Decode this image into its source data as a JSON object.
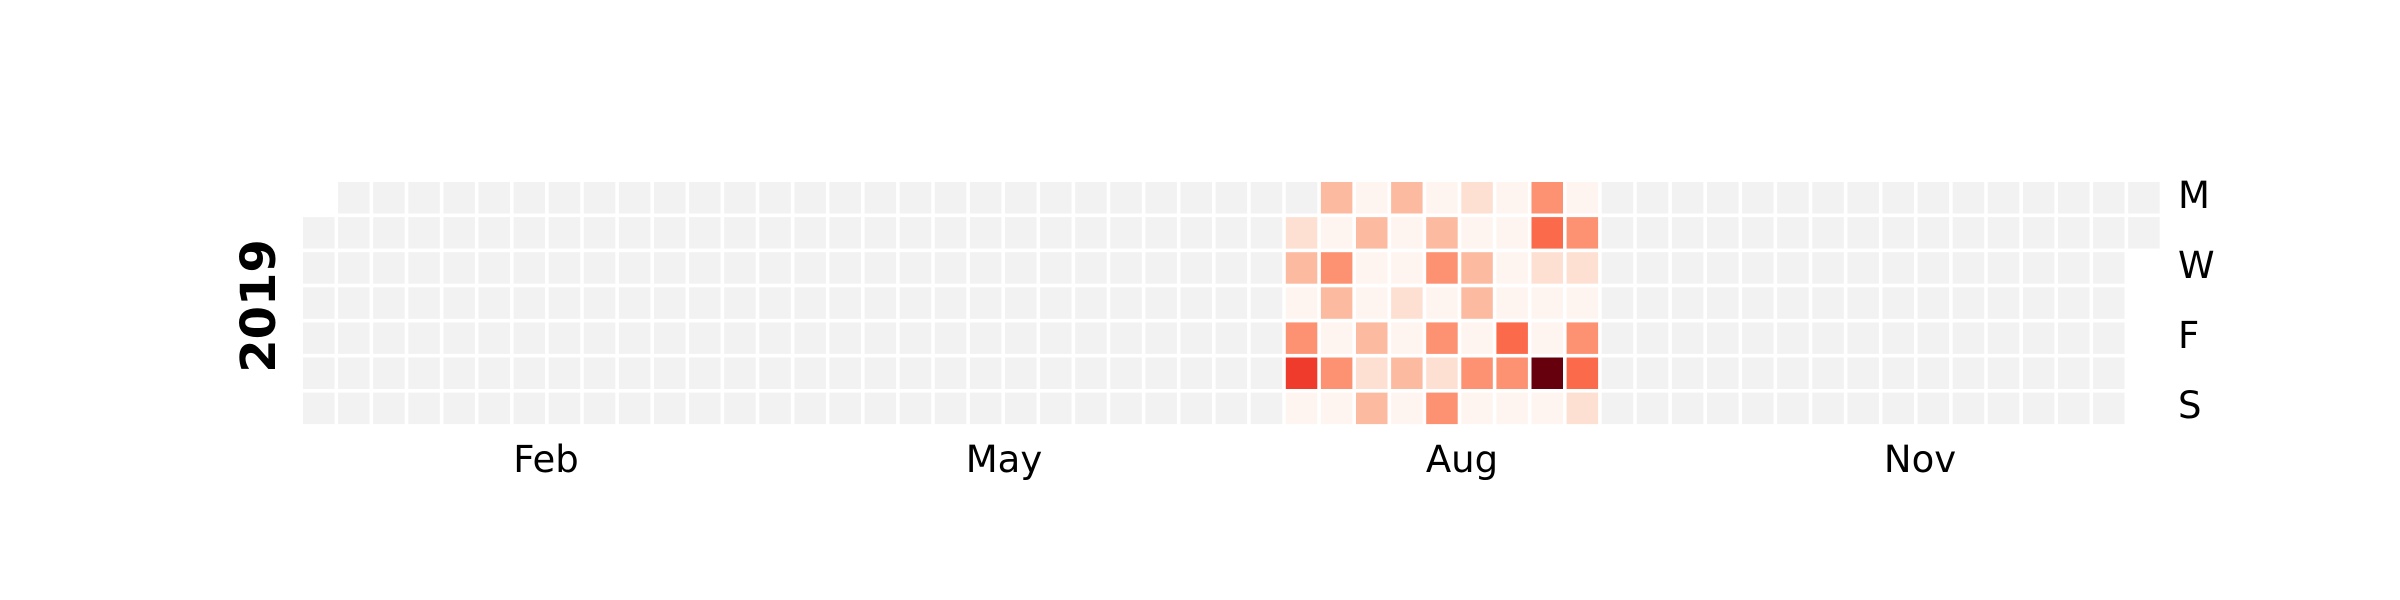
{
  "chart_data": {
    "type": "heatmap",
    "title": "",
    "year_label": "2019",
    "month_labels": [
      "Feb",
      "May",
      "Aug",
      "Nov"
    ],
    "weekday_labels": [
      "M",
      "W",
      "F",
      "S"
    ],
    "colors": {
      "empty": "#f2f2f2",
      "scale": [
        "#fff5f0",
        "#fee0d2",
        "#fcbba1",
        "#fc9272",
        "#fb6a4a",
        "#ef3b2c",
        "#67000d"
      ]
    },
    "value_range": [
      0,
      6
    ],
    "grid": {
      "rows": [
        "Mon",
        "Tue",
        "Wed",
        "Thu",
        "Fri",
        "Sat",
        "Sun"
      ],
      "first_column_starts_on_row": 1,
      "last_column_ends_on_row": 1,
      "column_count": 53
    },
    "active_weeks": [
      {
        "week": 28,
        "values": [
          null,
          1,
          2,
          0,
          3,
          5,
          0
        ]
      },
      {
        "week": 29,
        "values": [
          2,
          0,
          3,
          2,
          0,
          3,
          0
        ]
      },
      {
        "week": 30,
        "values": [
          0,
          2,
          0,
          0,
          2,
          1,
          2
        ]
      },
      {
        "week": 31,
        "values": [
          2,
          0,
          0,
          1,
          0,
          2,
          0
        ]
      },
      {
        "week": 32,
        "values": [
          0,
          2,
          3,
          0,
          3,
          1,
          3
        ]
      },
      {
        "week": 33,
        "values": [
          1,
          0,
          2,
          2,
          0,
          3,
          0
        ]
      },
      {
        "week": 34,
        "values": [
          0,
          0,
          0,
          0,
          4,
          3,
          0
        ]
      },
      {
        "week": 35,
        "values": [
          3,
          4,
          1,
          0,
          0,
          6,
          0
        ]
      },
      {
        "week": 36,
        "values": [
          0,
          3,
          1,
          0,
          3,
          4,
          1
        ]
      }
    ]
  }
}
